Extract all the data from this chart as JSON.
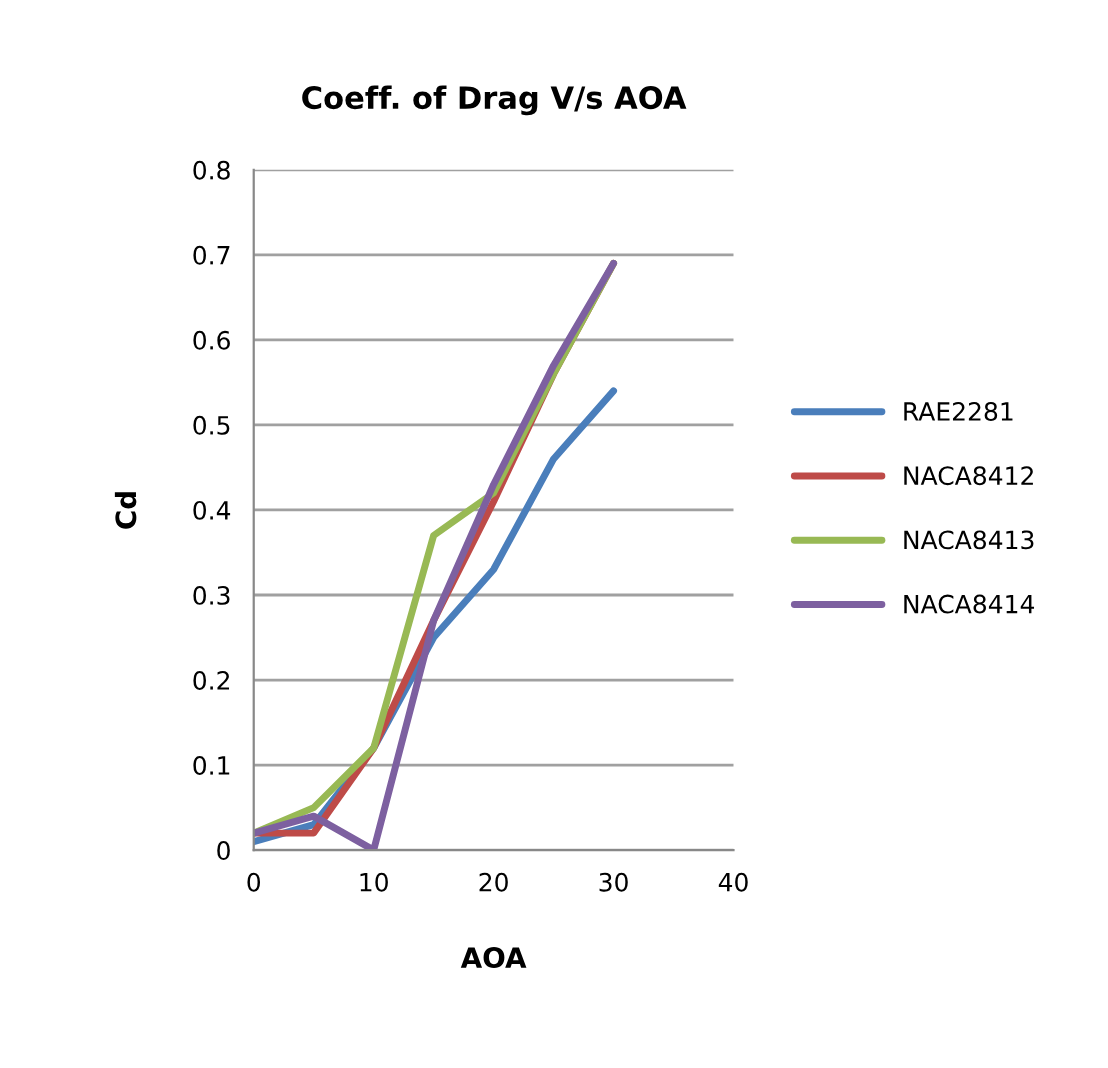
{
  "chart_data": {
    "type": "line",
    "title": "Coeff. of Drag V/s AOA",
    "xlabel": "AOA",
    "ylabel": "Cd",
    "x": [
      0,
      5,
      10,
      15,
      20,
      25,
      30
    ],
    "series": [
      {
        "name": "RAE2281",
        "color": "#4a7ebb",
        "values": [
          0.01,
          0.03,
          0.12,
          0.25,
          0.33,
          0.46,
          0.54
        ]
      },
      {
        "name": "NACA8412",
        "color": "#be4b48",
        "values": [
          0.02,
          0.02,
          0.12,
          0.27,
          0.41,
          0.56,
          0.69
        ]
      },
      {
        "name": "NACA8413",
        "color": "#98b954",
        "values": [
          0.02,
          0.05,
          0.12,
          0.37,
          0.42,
          0.56,
          0.69
        ]
      },
      {
        "name": "NACA8414",
        "color": "#7d60a0",
        "values": [
          0.02,
          0.04,
          0.0,
          0.27,
          0.43,
          0.57,
          0.69
        ]
      }
    ],
    "xlim": [
      0,
      40
    ],
    "xticks": [
      0,
      10,
      20,
      30,
      40
    ],
    "ylim": [
      0,
      0.8
    ],
    "yticks": [
      0,
      0.1,
      0.2,
      0.3,
      0.4,
      0.5,
      0.6,
      0.7,
      0.8
    ],
    "grid": "y",
    "legend": "right",
    "marker": "none",
    "line_style": "solid"
  }
}
